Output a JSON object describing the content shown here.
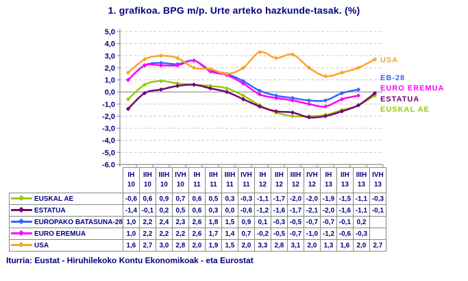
{
  "title": "1. grafikoa. BPG m/p. Urte arteko hazkunde-tasak. (%)",
  "footer": "Iturria: Eustat - Hiruhilekoko Kontu Ekonomikoak - eta Eurostat",
  "colors": {
    "text": "#000080",
    "grid": "#c8c8c8",
    "axis": "#8c8c8c",
    "table_border": "#858585"
  },
  "chart_data": {
    "type": "line",
    "title": "1. grafikoa. BPG m/p. Urte arteko hazkunde-tasak. (%)",
    "xlabel": "",
    "ylabel": "",
    "ylim": [
      -6.0,
      5.0
    ],
    "ytick_step": 1.0,
    "ytick_labels": [
      "5,0",
      "4,0",
      "3,0",
      "2,0",
      "1,0",
      "0,0",
      "-1,0",
      "-2,0",
      "-3,0",
      "-4,0",
      "-5,0",
      "-6,0"
    ],
    "grid": "horizontal-dashed",
    "legend_position": "right",
    "decimal_separator": ",",
    "categories": [
      "IH 10",
      "IIH 10",
      "IIIH 10",
      "IVH 10",
      "IH 11",
      "IIH 11",
      "IIIH 11",
      "IVH 11",
      "IH 12",
      "IIH 12",
      "IIIH 12",
      "IVH 12",
      "IH 13",
      "IIH 13",
      "IIIH 13",
      "IVH 13"
    ],
    "series": [
      {
        "id": "euskal_ae",
        "table_label": "EUSKAL AE",
        "legend_label": "EUSKAL AE",
        "color": "#9aca00",
        "values": [
          -0.6,
          0.6,
          0.9,
          0.7,
          0.6,
          0.5,
          0.3,
          -0.3,
          -1.1,
          -1.7,
          -2.0,
          -2.0,
          -1.9,
          -1.5,
          -1.1,
          -0.3
        ]
      },
      {
        "id": "estatua",
        "table_label": "ESTATUA",
        "legend_label": "ESTATUA",
        "color": "#760076",
        "values": [
          -1.4,
          -0.1,
          0.2,
          0.5,
          0.6,
          0.3,
          0.0,
          -0.6,
          -1.2,
          -1.6,
          -1.7,
          -2.1,
          -2.0,
          -1.6,
          -1.1,
          -0.1
        ]
      },
      {
        "id": "eb28",
        "table_label": "EUROPAKO BATASUNA-28",
        "legend_label": "EB-28",
        "color": "#3366ff",
        "values": [
          1.0,
          2.2,
          2.4,
          2.3,
          2.6,
          1.8,
          1.5,
          0.9,
          0.1,
          -0.3,
          -0.5,
          -0.7,
          -0.7,
          -0.1,
          0.2,
          null
        ]
      },
      {
        "id": "euro_eremua",
        "table_label": "EURO EREMUA",
        "legend_label": "EURO EREMUA",
        "color": "#ff00ff",
        "values": [
          1.0,
          2.2,
          2.2,
          2.2,
          2.6,
          1.7,
          1.4,
          0.7,
          -0.2,
          -0.5,
          -0.7,
          -1.0,
          -1.2,
          -0.6,
          -0.3,
          null
        ]
      },
      {
        "id": "usa",
        "table_label": "USA",
        "legend_label": "USA",
        "color": "#ffa228",
        "values": [
          1.6,
          2.7,
          3.0,
          2.8,
          2.0,
          1.9,
          1.5,
          2.0,
          3.3,
          2.8,
          3.1,
          2.0,
          1.3,
          1.6,
          2.0,
          2.7
        ]
      }
    ]
  }
}
